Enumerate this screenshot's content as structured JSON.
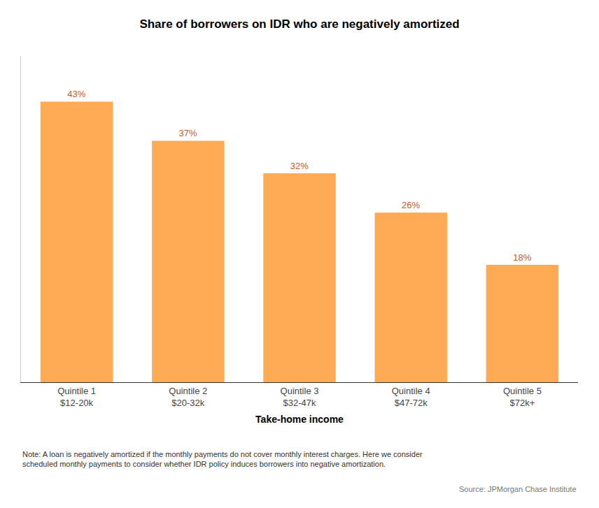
{
  "chart_data": {
    "type": "bar",
    "title": "Share of borrowers on IDR who are negatively amortized",
    "xlabel": "Take-home income",
    "categories": [
      "Quintile 1\n$12-20k",
      "Quintile 2\n$20-32k",
      "Quintile 3\n$32-47k",
      "Quintile 4\n$47-72k",
      "Quintile 5\n$72k+"
    ],
    "values": [
      43,
      37,
      32,
      26,
      18
    ],
    "value_labels": [
      "43%",
      "37%",
      "32%",
      "26%",
      "18%"
    ],
    "data_labels": true,
    "color": "#FFAB55",
    "ylim": [
      0,
      50
    ],
    "grid": false,
    "tick_labels": "x",
    "annotations": [
      "Note: A loan is negatively amortized if the monthly payments do not cover monthly interest charges. Here we consider\nscheduled monthly payments to consider whether IDR policy induces borrowers into negative amortization.",
      "Source: JPMorgan Chase Institute"
    ]
  }
}
